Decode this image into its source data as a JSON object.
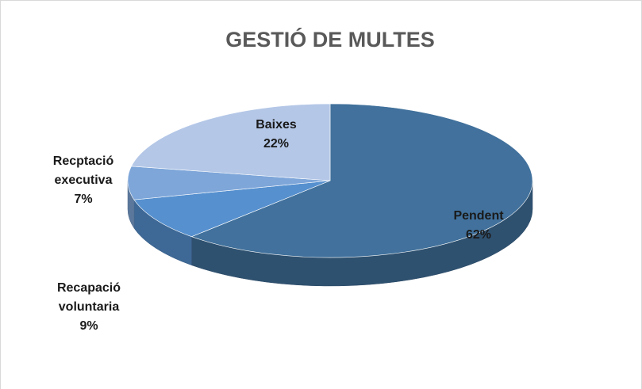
{
  "chart_data": {
    "type": "pie3d",
    "title": "GESTIÓ DE MULTES",
    "categories": [
      "Pendent",
      "Recapació voluntaria",
      "Recptació executiva",
      "Baixes"
    ],
    "values": [
      62,
      9,
      7,
      22
    ],
    "value_labels": [
      "62%",
      "9%",
      "7%",
      "22%"
    ],
    "colors": [
      "#41719c",
      "#5690cf",
      "#7ea6d9",
      "#b4c7e7"
    ]
  }
}
